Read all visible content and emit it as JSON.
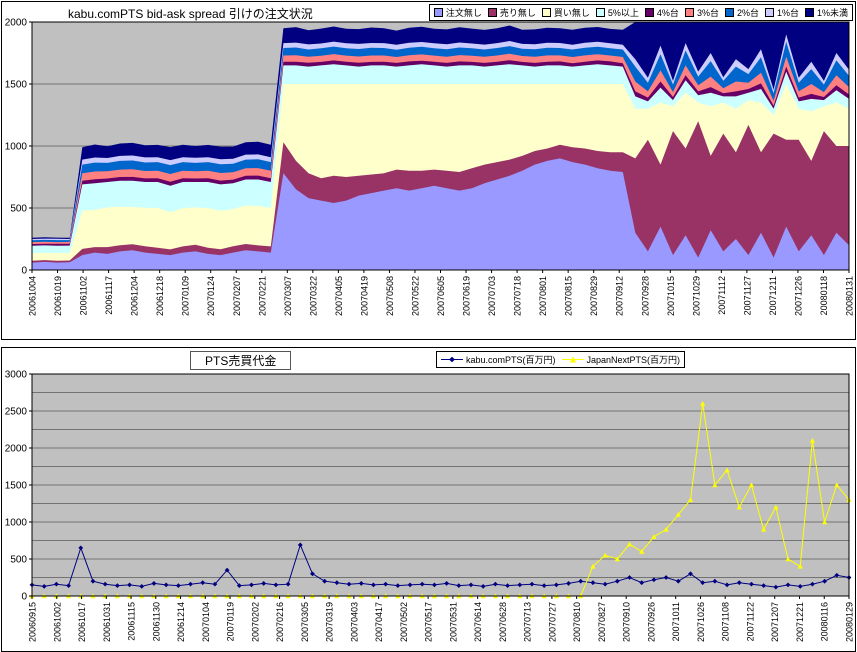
{
  "chart_data": [
    {
      "type": "area",
      "stacked": true,
      "title": "kabu.comPTS bid-ask spread 引けの注文状況",
      "ylim": [
        0,
        2000
      ],
      "y_ticks": [
        0,
        500,
        1000,
        1500,
        2000
      ],
      "grid_step": 500,
      "plot_bg": "#C0C0C0",
      "legend_position": "top-right",
      "x_tick_labels": [
        "20061004",
        "20061019",
        "20061102",
        "20061117",
        "20061204",
        "20061218",
        "20070109",
        "20070124",
        "20070207",
        "20070221",
        "20070307",
        "20070322",
        "20070405",
        "20070419",
        "20070508",
        "20070522",
        "20070605",
        "20070619",
        "20070703",
        "20070718",
        "20070801",
        "20070815",
        "20070829",
        "20070912",
        "20070928",
        "20071015",
        "20071029",
        "20071112",
        "20071127",
        "20071211",
        "20071226",
        "20080118",
        "20080131"
      ],
      "series": [
        {
          "name": "注文無し",
          "color": "#9999FF",
          "values": [
            60,
            65,
            60,
            62,
            120,
            140,
            130,
            150,
            160,
            140,
            130,
            120,
            140,
            150,
            130,
            120,
            140,
            160,
            150,
            140,
            780,
            650,
            580,
            560,
            540,
            560,
            600,
            620,
            640,
            660,
            640,
            660,
            680,
            660,
            640,
            660,
            700,
            730,
            760,
            800,
            850,
            880,
            900,
            870,
            850,
            820,
            800,
            790,
            300,
            150,
            350,
            120,
            280,
            100,
            320,
            150,
            250,
            120,
            300,
            100,
            350,
            150,
            280,
            120,
            300,
            200
          ]
        },
        {
          "name": "売り無し",
          "color": "#993366",
          "values": [
            15,
            15,
            15,
            15,
            50,
            45,
            55,
            50,
            48,
            52,
            50,
            46,
            50,
            54,
            50,
            48,
            52,
            50,
            48,
            50,
            250,
            230,
            200,
            180,
            220,
            190,
            160,
            150,
            140,
            150,
            160,
            140,
            130,
            140,
            150,
            160,
            150,
            140,
            130,
            120,
            110,
            100,
            110,
            120,
            130,
            140,
            150,
            160,
            600,
            900,
            500,
            1000,
            700,
            1100,
            600,
            950,
            700,
            1050,
            650,
            1000,
            700,
            900,
            600,
            1000,
            700,
            800
          ]
        },
        {
          "name": "買い無し",
          "color": "#FFFFCC",
          "values": [
            60,
            58,
            62,
            60,
            310,
            300,
            320,
            310,
            300,
            310,
            320,
            300,
            310,
            300,
            320,
            310,
            300,
            310,
            320,
            310,
            470,
            620,
            720,
            760,
            740,
            750,
            740,
            730,
            720,
            690,
            700,
            700,
            690,
            700,
            710,
            680,
            650,
            630,
            610,
            580,
            540,
            520,
            490,
            510,
            520,
            540,
            550,
            550,
            400,
            250,
            500,
            200,
            450,
            150,
            400,
            250,
            350,
            200,
            400,
            150,
            450,
            250,
            400,
            200,
            350,
            300
          ]
        },
        {
          "name": "5%以上",
          "color": "#CCFFFF",
          "values": [
            60,
            60,
            58,
            60,
            210,
            215,
            205,
            210,
            212,
            208,
            210,
            214,
            210,
            206,
            210,
            212,
            208,
            210,
            212,
            210,
            150,
            150,
            140,
            150,
            160,
            150,
            140,
            150,
            150,
            140,
            150,
            160,
            150,
            140,
            150,
            150,
            140,
            150,
            160,
            150,
            140,
            150,
            150,
            140,
            150,
            160,
            150,
            140,
            100,
            60,
            120,
            50,
            100,
            60,
            110,
            50,
            100,
            60,
            110,
            50,
            100,
            60,
            100,
            50,
            100,
            80
          ]
        },
        {
          "name": "4%台",
          "color": "#660066",
          "values": [
            15,
            14,
            16,
            15,
            30,
            32,
            28,
            30,
            31,
            29,
            30,
            32,
            30,
            28,
            30,
            31,
            29,
            30,
            31,
            30,
            30,
            30,
            32,
            28,
            30,
            30,
            32,
            28,
            30,
            30,
            32,
            28,
            30,
            30,
            32,
            28,
            30,
            30,
            32,
            28,
            30,
            30,
            32,
            28,
            30,
            30,
            32,
            28,
            40,
            30,
            50,
            25,
            40,
            30,
            45,
            25,
            40,
            30,
            45,
            25,
            40,
            30,
            40,
            25,
            40,
            35
          ]
        },
        {
          "name": "3%台",
          "color": "#FF8080",
          "values": [
            15,
            16,
            14,
            15,
            60,
            62,
            58,
            60,
            61,
            59,
            60,
            62,
            60,
            58,
            60,
            61,
            59,
            60,
            61,
            60,
            50,
            52,
            48,
            50,
            51,
            49,
            50,
            52,
            50,
            48,
            50,
            51,
            49,
            50,
            51,
            50,
            49,
            50,
            52,
            48,
            50,
            51,
            49,
            50,
            51,
            50,
            48,
            50,
            80,
            50,
            90,
            40,
            80,
            50,
            85,
            40,
            80,
            50,
            85,
            40,
            80,
            50,
            80,
            40,
            80,
            60
          ]
        },
        {
          "name": "2%台",
          "color": "#0066CC",
          "values": [
            15,
            15,
            16,
            14,
            70,
            72,
            68,
            70,
            71,
            69,
            70,
            72,
            70,
            68,
            70,
            71,
            69,
            70,
            71,
            70,
            60,
            62,
            58,
            60,
            61,
            59,
            60,
            62,
            60,
            58,
            60,
            61,
            59,
            60,
            61,
            60,
            59,
            60,
            62,
            58,
            60,
            61,
            59,
            60,
            61,
            60,
            58,
            60,
            120,
            70,
            130,
            60,
            120,
            70,
            125,
            60,
            120,
            70,
            125,
            60,
            120,
            70,
            120,
            60,
            120,
            90
          ]
        },
        {
          "name": "1%台",
          "color": "#CCCCFF",
          "values": [
            10,
            10,
            11,
            9,
            40,
            41,
            39,
            40,
            40,
            41,
            39,
            40,
            40,
            41,
            39,
            40,
            40,
            41,
            39,
            40,
            40,
            40,
            41,
            39,
            40,
            40,
            41,
            39,
            40,
            40,
            41,
            39,
            40,
            40,
            41,
            39,
            40,
            40,
            41,
            39,
            40,
            40,
            41,
            39,
            40,
            40,
            41,
            39,
            60,
            40,
            70,
            30,
            60,
            40,
            65,
            30,
            60,
            40,
            65,
            30,
            60,
            40,
            60,
            30,
            60,
            50
          ]
        },
        {
          "name": "1%未満",
          "color": "#000080",
          "values": [
            10,
            11,
            9,
            10,
            100,
            105,
            95,
            100,
            102,
            98,
            100,
            105,
            100,
            95,
            100,
            102,
            98,
            100,
            102,
            100,
            120,
            125,
            115,
            120,
            122,
            118,
            120,
            125,
            120,
            115,
            120,
            122,
            118,
            120,
            122,
            120,
            118,
            120,
            125,
            115,
            120,
            122,
            118,
            120,
            122,
            120,
            115,
            120,
            300,
            450,
            190,
            475,
            170,
            400,
            250,
            445,
            300,
            380,
            220,
            545,
            100,
            450,
            320,
            475,
            250,
            385
          ]
        }
      ]
    },
    {
      "type": "line",
      "stacked": false,
      "title": "PTS売買代金",
      "ylim": [
        0,
        3000
      ],
      "y_ticks": [
        0,
        500,
        1000,
        1500,
        2000,
        2500,
        3000
      ],
      "grid_step": 250,
      "plot_bg": "#C0C0C0",
      "legend_position": "top-center",
      "x_tick_labels": [
        "20060915",
        "20061002",
        "20061017",
        "20061031",
        "20061115",
        "20061130",
        "20061214",
        "20070104",
        "20070119",
        "20070202",
        "20070216",
        "20070305",
        "20070319",
        "20070403",
        "20070417",
        "20070502",
        "20070517",
        "20070531",
        "20070614",
        "20070628",
        "20070713",
        "20070727",
        "20070810",
        "20070827",
        "20070910",
        "20070926",
        "20071011",
        "20071026",
        "20071108",
        "20071122",
        "20071207",
        "20071221",
        "20080116",
        "20080129"
      ],
      "series": [
        {
          "name": "kabu.comPTS(百万円)",
          "color": "#000080",
          "marker": "diamond",
          "values": [
            150,
            130,
            160,
            140,
            650,
            200,
            160,
            140,
            150,
            130,
            170,
            150,
            140,
            160,
            180,
            160,
            350,
            140,
            150,
            170,
            150,
            160,
            690,
            300,
            200,
            180,
            160,
            170,
            150,
            160,
            140,
            150,
            160,
            150,
            170,
            140,
            150,
            130,
            160,
            140,
            150,
            160,
            140,
            150,
            170,
            200,
            180,
            160,
            200,
            250,
            180,
            220,
            250,
            200,
            300,
            180,
            200,
            150,
            180,
            160,
            140,
            120,
            150,
            130,
            160,
            200,
            280,
            250
          ]
        },
        {
          "name": "JapanNextPTS(百万円)",
          "color": "#FFFF00",
          "marker": "triangle",
          "values": [
            0,
            0,
            0,
            0,
            0,
            0,
            0,
            0,
            0,
            0,
            0,
            0,
            0,
            0,
            0,
            0,
            0,
            0,
            0,
            0,
            0,
            0,
            0,
            0,
            0,
            0,
            0,
            0,
            0,
            0,
            0,
            0,
            0,
            0,
            0,
            0,
            0,
            0,
            0,
            0,
            0,
            0,
            0,
            0,
            0,
            0,
            400,
            550,
            500,
            700,
            600,
            800,
            900,
            1100,
            1300,
            2600,
            1500,
            1700,
            1200,
            1500,
            900,
            1200,
            500,
            400,
            2100,
            1000,
            1500,
            1300
          ]
        }
      ]
    }
  ]
}
